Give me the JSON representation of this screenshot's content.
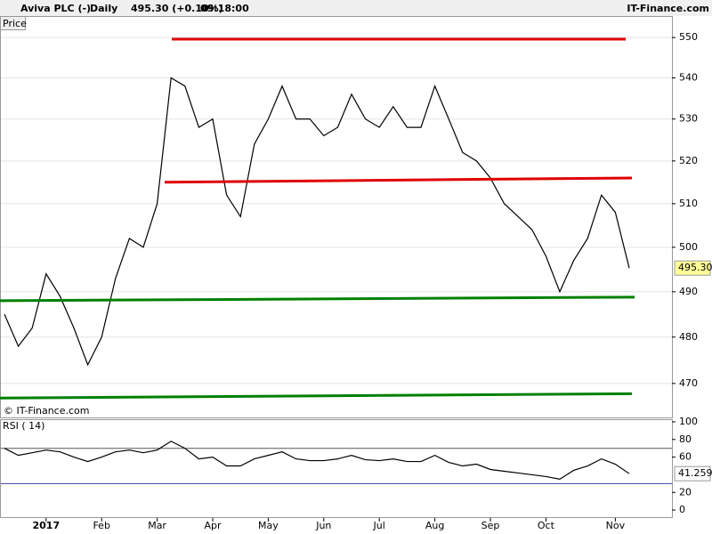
{
  "header": {
    "instrument": "Aviva PLC (-)",
    "period": "Daily",
    "quote": "495.30 (+0.10%)",
    "time": "09:18:00",
    "site": "IT-Finance.com"
  },
  "chart_data": [
    {
      "type": "line",
      "title": "Price",
      "annotation": "© IT-Finance.com",
      "categories": [
        null,
        null,
        null,
        "2017",
        null,
        null,
        null,
        "Feb",
        null,
        null,
        null,
        "Mar",
        null,
        null,
        null,
        "Apr",
        null,
        null,
        null,
        "May",
        null,
        null,
        null,
        "Jun",
        null,
        null,
        null,
        "Jul",
        null,
        null,
        null,
        "Aug",
        null,
        null,
        null,
        "Sep",
        null,
        null,
        null,
        "Oct",
        null,
        null,
        null,
        null,
        "Nov",
        null
      ],
      "values": [
        485,
        478,
        482,
        494,
        489,
        482,
        474,
        480,
        493,
        502,
        500,
        510,
        540,
        538,
        528,
        530,
        512,
        507,
        524,
        530,
        538,
        530,
        530,
        526,
        528,
        536,
        530,
        528,
        533,
        528,
        528,
        538,
        530,
        522,
        520,
        516,
        510,
        507,
        504,
        498,
        490,
        497,
        502,
        512,
        508,
        495.3
      ],
      "color": "#000000",
      "last_value": {
        "value": 495.3,
        "label": "495.30"
      },
      "log_scale": true,
      "ylim": [
        462.8,
        555.4
      ],
      "yticks": [
        470,
        480,
        490,
        500,
        510,
        520,
        530,
        540,
        550
      ],
      "grid": true,
      "lines": [
        {
          "color": "#e00000",
          "values": [
            549.6,
            549.6
          ]
        },
        {
          "color": "#e00000",
          "values": [
            515.0,
            516.0
          ]
        },
        {
          "color": "#008000",
          "values": [
            488.0,
            488.8
          ]
        },
        {
          "color": "#008000",
          "values": [
            466.9,
            467.8
          ]
        }
      ]
    },
    {
      "type": "line",
      "title": "RSI ( 14)",
      "values": [
        70,
        62,
        65,
        68,
        66,
        60,
        55,
        60,
        66,
        68,
        65,
        68,
        78,
        70,
        58,
        60,
        50,
        50,
        58,
        62,
        66,
        58,
        56,
        56,
        58,
        62,
        57,
        56,
        58,
        55,
        55,
        62,
        54,
        50,
        52,
        46,
        44,
        42,
        40,
        38,
        35,
        45,
        50,
        58,
        52,
        41.259
      ],
      "color": "#000000",
      "last_value": 41.259,
      "ylim": [
        -9,
        103
      ],
      "yticks": [
        0,
        20,
        60,
        80,
        100
      ],
      "levels": [
        {
          "value": 70,
          "color": "#555555"
        },
        {
          "value": 30,
          "color": "#4040a0"
        }
      ]
    }
  ]
}
